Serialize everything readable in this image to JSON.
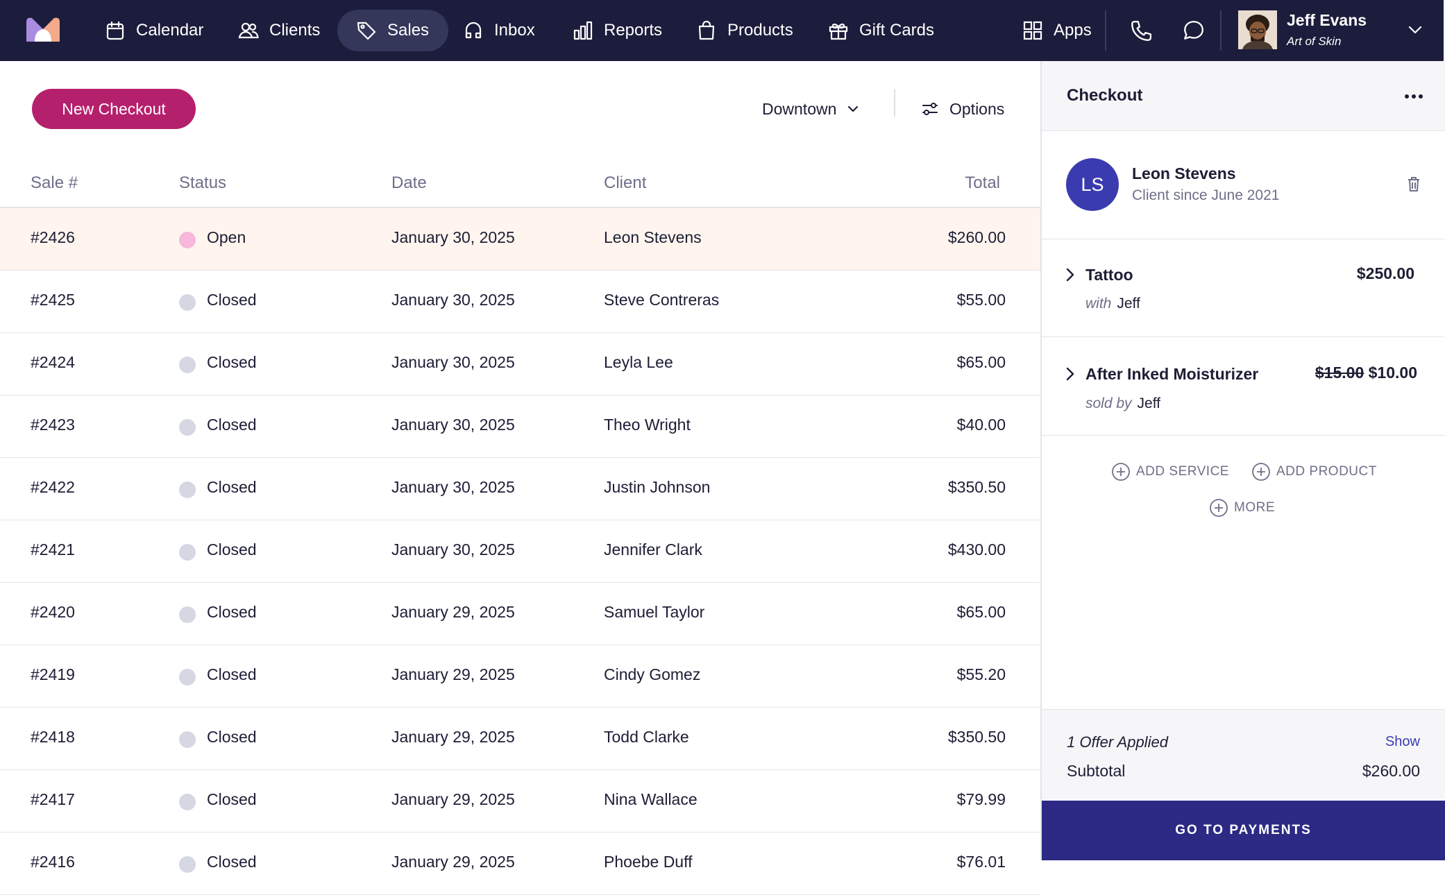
{
  "nav": {
    "items": [
      {
        "label": "Calendar",
        "icon": "calendar-icon"
      },
      {
        "label": "Clients",
        "icon": "users-icon"
      },
      {
        "label": "Sales",
        "icon": "tag-icon",
        "active": true
      },
      {
        "label": "Inbox",
        "icon": "inbox-icon"
      },
      {
        "label": "Reports",
        "icon": "bar-chart-icon"
      },
      {
        "label": "Products",
        "icon": "shopping-bag-icon"
      },
      {
        "label": "Gift Cards",
        "icon": "gift-icon"
      }
    ],
    "apps_label": "Apps",
    "user": {
      "name": "Jeff Evans",
      "org": "Art of Skin"
    },
    "colors": {
      "bar": "#1c1d3c",
      "active_pill": "#34365a"
    }
  },
  "toolbar": {
    "new_checkout_label": "New Checkout",
    "location": "Downtown",
    "options_label": "Options",
    "accent": "#b5206c"
  },
  "table": {
    "headers": {
      "sale": "Sale #",
      "status": "Status",
      "date": "Date",
      "client": "Client",
      "total": "Total"
    },
    "rows": [
      {
        "sale": "#2426",
        "status": "Open",
        "date": "January 30, 2025",
        "client": "Leon Stevens",
        "total": "$260.00"
      },
      {
        "sale": "#2425",
        "status": "Closed",
        "date": "January 30, 2025",
        "client": "Steve Contreras",
        "total": "$55.00"
      },
      {
        "sale": "#2424",
        "status": "Closed",
        "date": "January 30, 2025",
        "client": "Leyla Lee",
        "total": "$65.00"
      },
      {
        "sale": "#2423",
        "status": "Closed",
        "date": "January 30, 2025",
        "client": "Theo Wright",
        "total": "$40.00"
      },
      {
        "sale": "#2422",
        "status": "Closed",
        "date": "January 30, 2025",
        "client": "Justin Johnson",
        "total": "$350.50"
      },
      {
        "sale": "#2421",
        "status": "Closed",
        "date": "January 30, 2025",
        "client": "Jennifer Clark",
        "total": "$430.00"
      },
      {
        "sale": "#2420",
        "status": "Closed",
        "date": "January 29, 2025",
        "client": "Samuel Taylor",
        "total": "$65.00"
      },
      {
        "sale": "#2419",
        "status": "Closed",
        "date": "January 29, 2025",
        "client": "Cindy Gomez",
        "total": "$55.20"
      },
      {
        "sale": "#2418",
        "status": "Closed",
        "date": "January 29, 2025",
        "client": "Todd Clarke",
        "total": "$350.50"
      },
      {
        "sale": "#2417",
        "status": "Closed",
        "date": "January 29, 2025",
        "client": "Nina Wallace",
        "total": "$79.99"
      },
      {
        "sale": "#2416",
        "status": "Closed",
        "date": "January 29, 2025",
        "client": "Phoebe Duff",
        "total": "$76.01"
      }
    ],
    "status_colors": {
      "Open": "#f7b8dc",
      "Closed": "#d5d8e3"
    },
    "selected_row_color": "#fff5ee"
  },
  "checkout": {
    "title": "Checkout",
    "client": {
      "initials": "LS",
      "name": "Leon Stevens",
      "since": "Client since June 2021"
    },
    "items": [
      {
        "name": "Tattoo",
        "price": "$250.00",
        "original_price": "",
        "sub_prefix": "with",
        "sub_name": "Jeff"
      },
      {
        "name": "After Inked Moisturizer",
        "price": "$10.00",
        "original_price": "$15.00",
        "sub_prefix": "sold by",
        "sub_name": "Jeff"
      }
    ],
    "actions": {
      "add_service": "ADD SERVICE",
      "add_product": "ADD PRODUCT",
      "more": "MORE"
    },
    "summary": {
      "offer": "1 Offer Applied",
      "show": "Show",
      "subtotal_label": "Subtotal",
      "subtotal": "$260.00"
    },
    "pay_label": "GO TO PAYMENTS",
    "pay_color": "#2c2a85"
  }
}
